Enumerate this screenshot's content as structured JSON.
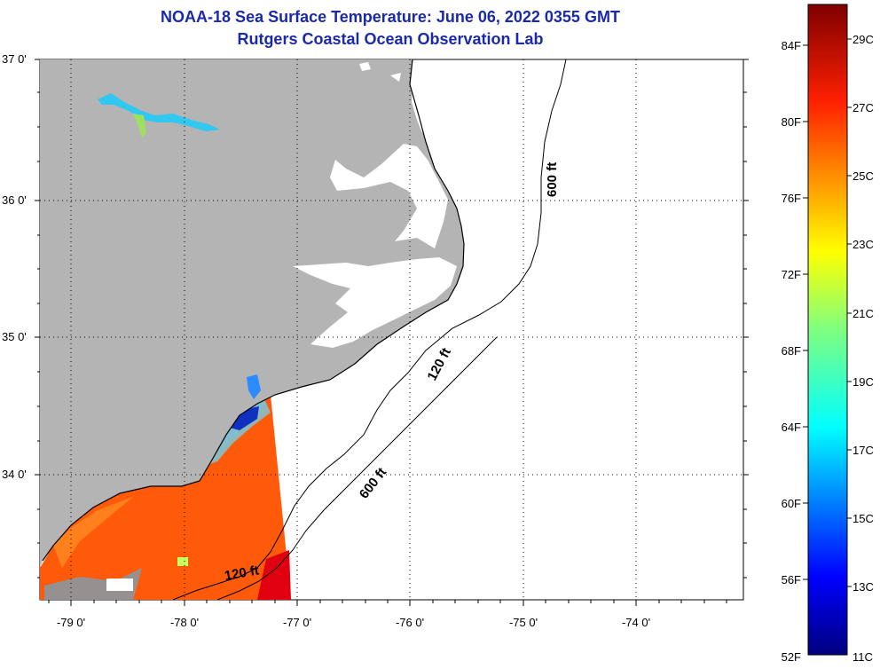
{
  "header": {
    "title_line_1": "NOAA-18 Sea Surface Temperature:  June 06, 2022 0355 GMT",
    "title_line_2": "Rutgers Coastal Ocean Observation Lab"
  },
  "map": {
    "lat_labels": [
      "37 0'",
      "36 0'",
      "35 0'",
      "34 0'"
    ],
    "lon_labels": [
      "-79 0'",
      "-78 0'",
      "-77 0'",
      "-76 0'",
      "-75 0'",
      "-74 0'"
    ],
    "contour_labels": [
      "600 ft",
      "120 ft",
      "600 ft",
      "120 ft"
    ],
    "colors": {
      "land": "#b4b4b4",
      "sea": "#ffffff",
      "grid": "#000000",
      "warm_sst": "#ff5a0a"
    }
  },
  "colorbar": {
    "fahrenheit_labels": [
      "84F",
      "80F",
      "76F",
      "72F",
      "68F",
      "64F",
      "60F",
      "56F",
      "52F"
    ],
    "celsius_labels": [
      "29C",
      "27C",
      "25C",
      "23C",
      "21C",
      "19C",
      "17C",
      "15C",
      "13C",
      "11C"
    ],
    "colormap": "jet"
  }
}
